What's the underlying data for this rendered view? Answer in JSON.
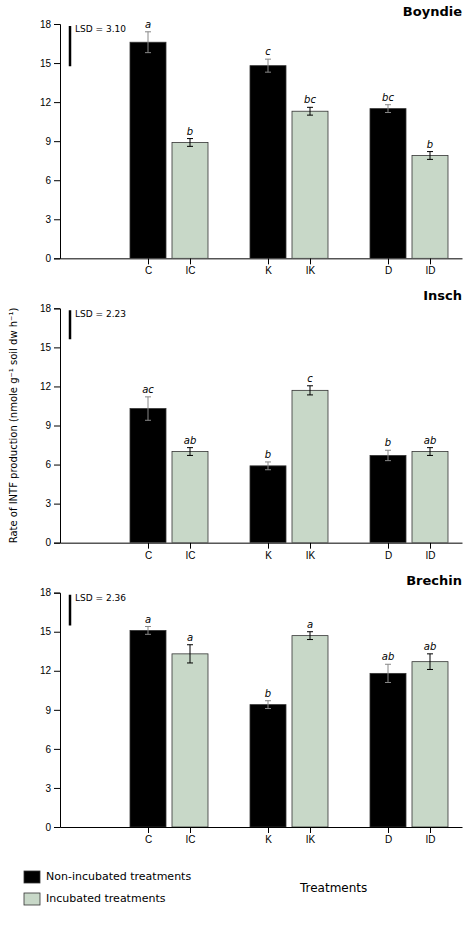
{
  "chart_data": [
    {
      "type": "bar",
      "title": "Boyndie",
      "categories": [
        "C",
        "IC",
        "K",
        "IK",
        "D",
        "ID"
      ],
      "values": [
        16.6,
        8.9,
        14.8,
        11.3,
        11.5,
        7.9
      ],
      "errors": [
        0.8,
        0.3,
        0.5,
        0.3,
        0.3,
        0.3
      ],
      "annotations": [
        "a",
        "b",
        "c",
        "bc",
        "bc",
        "b"
      ],
      "colors": [
        "black",
        "#c8d8c8",
        "black",
        "#c8d8c8",
        "black",
        "#c8d8c8"
      ],
      "lsd": 3.1,
      "lsd_label": "LSD = 3.10",
      "ylim": [
        0,
        18
      ],
      "yticks": [
        0,
        3,
        6,
        9,
        12,
        15,
        18
      ]
    },
    {
      "type": "bar",
      "title": "Insch",
      "categories": [
        "C",
        "IC",
        "K",
        "IK",
        "D",
        "ID"
      ],
      "values": [
        10.3,
        7.0,
        5.9,
        11.7,
        6.7,
        7.0
      ],
      "errors": [
        0.9,
        0.3,
        0.3,
        0.35,
        0.4,
        0.3
      ],
      "annotations": [
        "ac",
        "ab",
        "b",
        "c",
        "b",
        "ab"
      ],
      "colors": [
        "black",
        "#c8d8c8",
        "black",
        "#c8d8c8",
        "black",
        "#c8d8c8"
      ],
      "lsd": 2.23,
      "lsd_label": "LSD = 2.23",
      "ylabel": "Rate of INTF production (nmole g⁻¹ soil dw h⁻¹)",
      "ylim": [
        0,
        18
      ],
      "yticks": [
        0,
        3,
        6,
        9,
        12,
        15,
        18
      ]
    },
    {
      "type": "bar",
      "title": "Brechin",
      "categories": [
        "C",
        "IC",
        "K",
        "IK",
        "D",
        "ID"
      ],
      "values": [
        15.1,
        13.3,
        9.4,
        14.7,
        11.8,
        12.7
      ],
      "errors": [
        0.3,
        0.7,
        0.3,
        0.3,
        0.7,
        0.6
      ],
      "annotations": [
        "a",
        "a",
        "b",
        "a",
        "ab",
        "ab"
      ],
      "colors": [
        "black",
        "#c8d8c8",
        "black",
        "#c8d8c8",
        "black",
        "#c8d8c8"
      ],
      "lsd": 2.36,
      "lsd_label": "LSD = 2.36",
      "xlabel": "Treatments",
      "legend_entries": [
        {
          "name": "Non-incubated treatments",
          "color": "black"
        },
        {
          "name": "Incubated treatments",
          "color": "#c8d8c8"
        }
      ],
      "ylim": [
        0,
        18
      ],
      "yticks": [
        0,
        3,
        6,
        9,
        12,
        15,
        18
      ]
    }
  ]
}
